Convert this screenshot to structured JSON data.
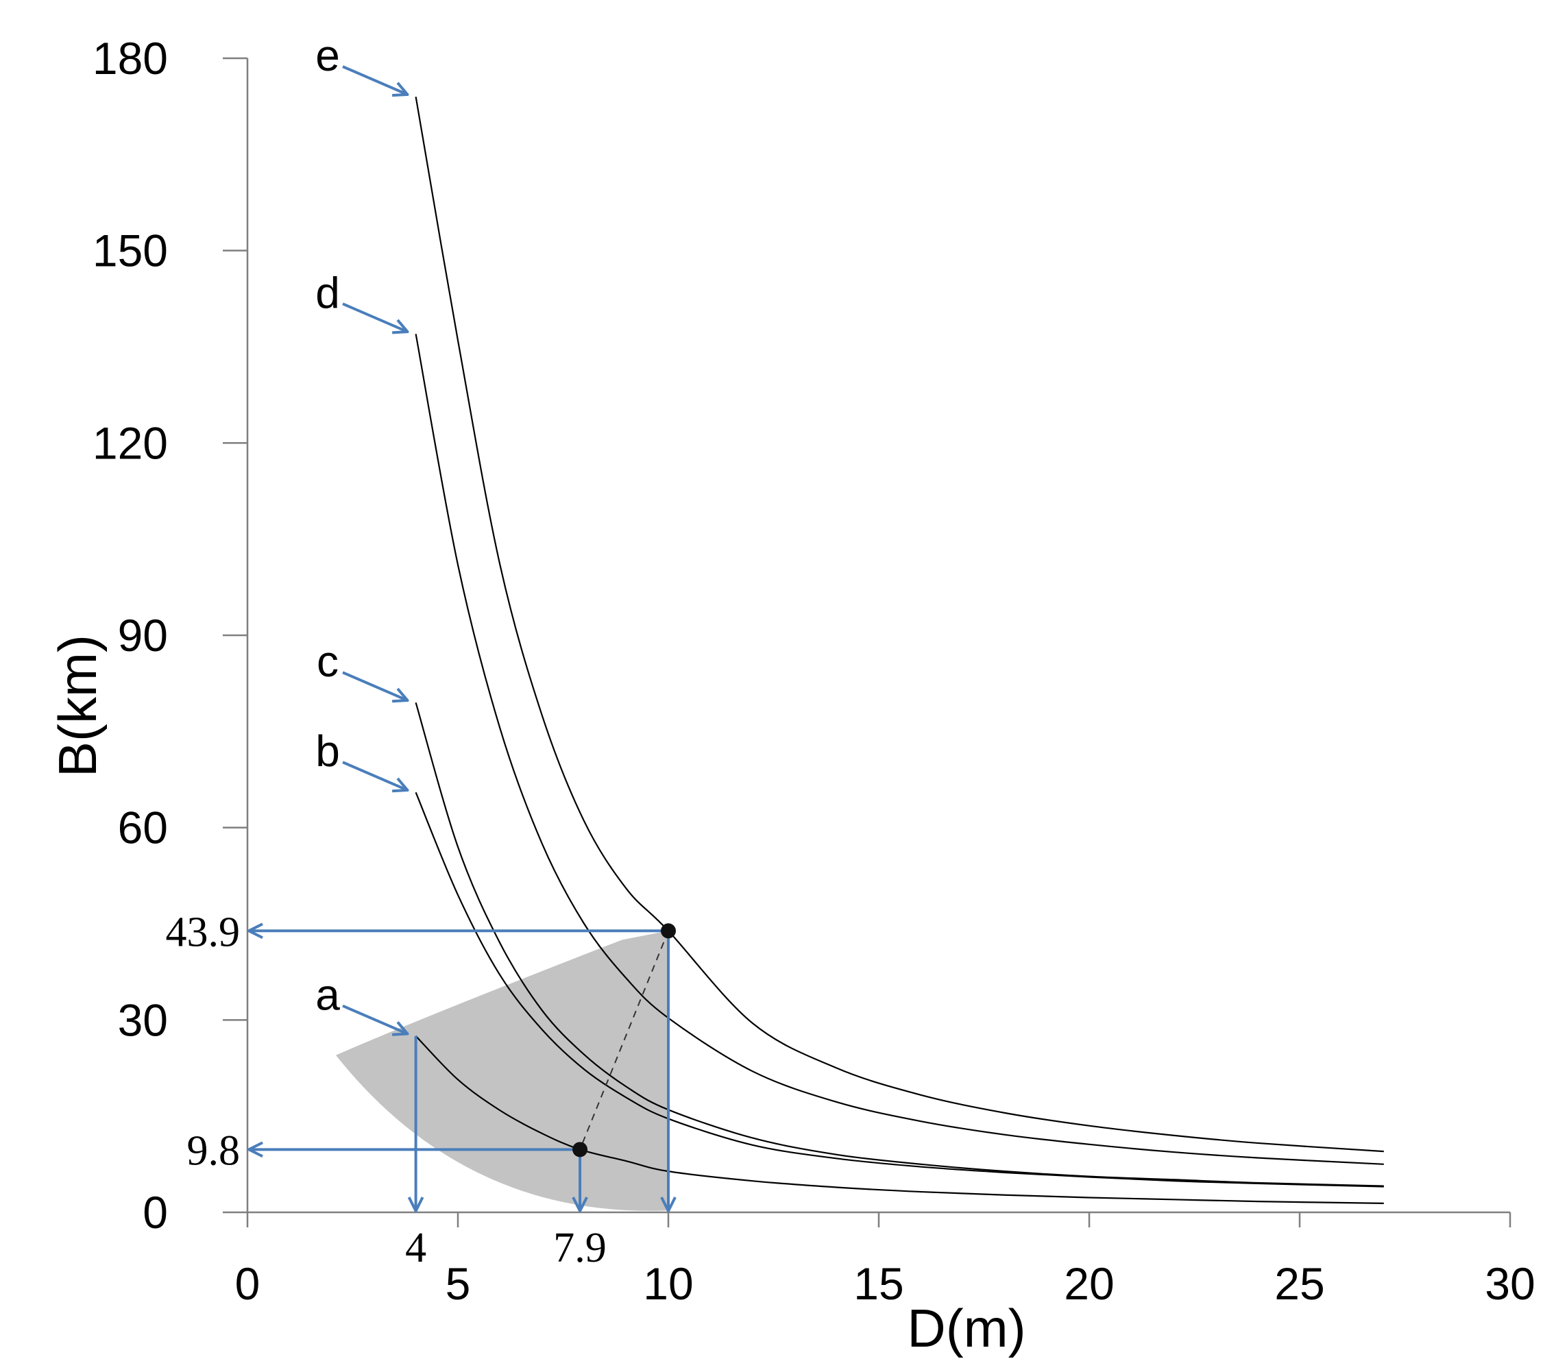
{
  "chart_data": {
    "type": "line",
    "title": "",
    "xlabel": "D(m)",
    "ylabel": "B(km)",
    "xlim": [
      0,
      30
    ],
    "ylim": [
      0,
      180
    ],
    "x_ticks": [
      0,
      5,
      10,
      15,
      20,
      25,
      30
    ],
    "y_ticks": [
      0,
      30,
      60,
      90,
      120,
      150,
      180
    ],
    "grid": false,
    "legend": "none",
    "series": [
      {
        "label": "a",
        "x": [
          4,
          5,
          6,
          7,
          7.9,
          9,
          10,
          12,
          14,
          16,
          18,
          20,
          22,
          24,
          27
        ],
        "y": [
          27.5,
          20.7,
          15.9,
          12.3,
          9.8,
          8.0,
          6.4,
          4.9,
          3.9,
          3.2,
          2.7,
          2.3,
          2.0,
          1.7,
          1.4
        ]
      },
      {
        "label": "b",
        "x": [
          4,
          5,
          6,
          7,
          8,
          9,
          10,
          12,
          14,
          16,
          18,
          20,
          22,
          24,
          27
        ],
        "y": [
          65.5,
          49.5,
          37.0,
          28.5,
          22.3,
          17.9,
          14.6,
          10.5,
          8.4,
          7.1,
          6.2,
          5.5,
          4.9,
          4.5,
          4.0
        ]
      },
      {
        "label": "c",
        "x": [
          4,
          5,
          6,
          7,
          8,
          9,
          10,
          12,
          14,
          16,
          18,
          20,
          22,
          24,
          27
        ],
        "y": [
          79.5,
          57.0,
          42.0,
          31.5,
          24.6,
          19.6,
          16.0,
          11.6,
          9.0,
          7.5,
          6.4,
          5.6,
          5.1,
          4.6,
          4.1
        ]
      },
      {
        "label": "d",
        "x": [
          4,
          5,
          6,
          7,
          8,
          9,
          10,
          12,
          14,
          16,
          18,
          20,
          22,
          24,
          27
        ],
        "y": [
          137.0,
          101.0,
          75.5,
          57.5,
          45.0,
          36.5,
          30.3,
          22.0,
          17.2,
          14.2,
          12.1,
          10.6,
          9.4,
          8.5,
          7.5
        ]
      },
      {
        "label": "e",
        "x": [
          4,
          5,
          6,
          7,
          8,
          9,
          10,
          12,
          14,
          16,
          18,
          20,
          22,
          24,
          27
        ],
        "y": [
          174.0,
          136.0,
          101.0,
          77.5,
          61.0,
          50.5,
          43.9,
          29.5,
          22.5,
          18.3,
          15.5,
          13.5,
          12.0,
          10.8,
          9.5
        ]
      }
    ],
    "annotations": [
      {
        "label": "43.9",
        "axis": "y",
        "value": 43.9
      },
      {
        "label": "9.8",
        "axis": "y",
        "value": 9.8
      },
      {
        "label": "4",
        "axis": "x",
        "value": 4
      },
      {
        "label": "7.9",
        "axis": "x",
        "value": 7.9
      }
    ],
    "highlight_points": [
      {
        "x": 10,
        "y": 43.9
      },
      {
        "x": 7.9,
        "y": 9.8
      }
    ],
    "colors": {
      "curve": "#000000",
      "arrow": "#4a7ebb",
      "shade": "#c3c3c3",
      "axis": "#7f7f7f"
    }
  }
}
